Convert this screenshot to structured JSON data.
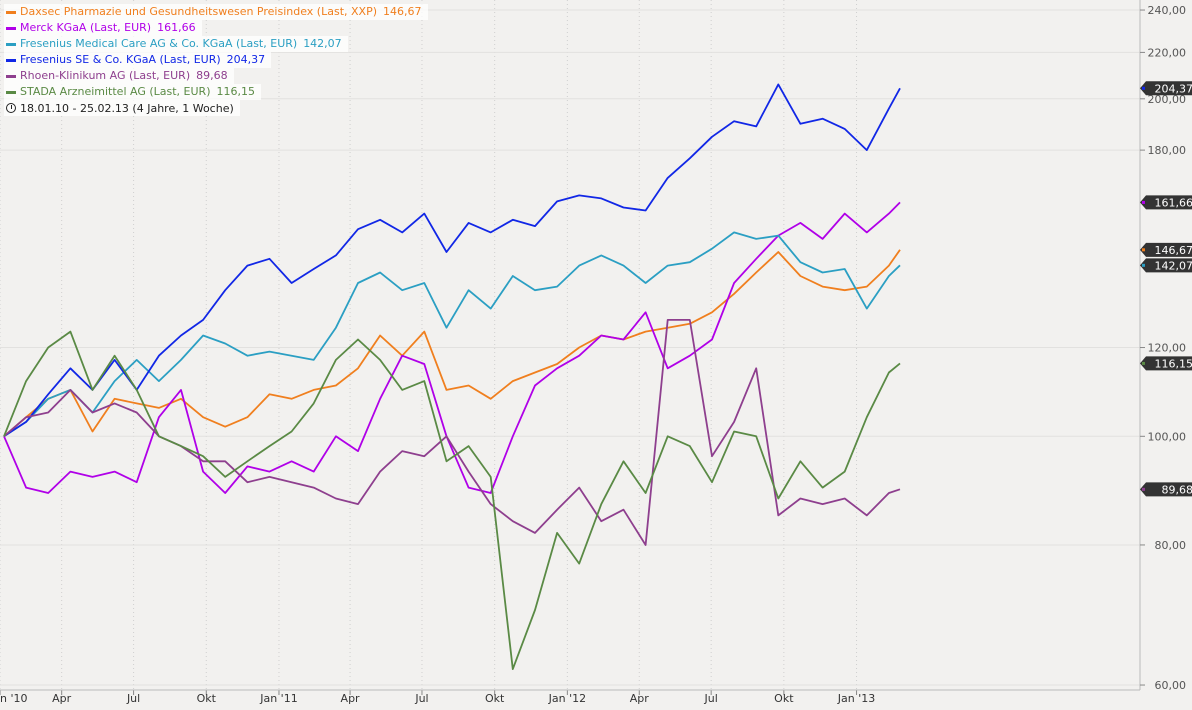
{
  "chart_data": {
    "type": "line",
    "period_label": "18.01.10 - 25.02.13 (4 Jahre, 1 Woche)",
    "ylim": [
      57,
      245
    ],
    "y_scale": "log",
    "y_ticks": [
      {
        "value": 60,
        "label": "60,00"
      },
      {
        "value": 80,
        "label": "80,00"
      },
      {
        "value": 100,
        "label": "100,00"
      },
      {
        "value": 120,
        "label": "120,00"
      },
      {
        "value": 180,
        "label": "180,00"
      },
      {
        "value": 200,
        "label": "200,00"
      },
      {
        "value": 220,
        "label": "220,00"
      },
      {
        "value": 240,
        "label": "240,00"
      }
    ],
    "x_start": "2010-01-18",
    "x_end": "2013-02-25",
    "x_ticks": [
      {
        "date": "2010-01-01",
        "label": "n '10"
      },
      {
        "date": "2010-04-01",
        "label": "Apr"
      },
      {
        "date": "2010-07-01",
        "label": "Jul"
      },
      {
        "date": "2010-10-01",
        "label": "Okt"
      },
      {
        "date": "2011-01-01",
        "label": "Jan '11"
      },
      {
        "date": "2011-04-01",
        "label": "Apr"
      },
      {
        "date": "2011-07-01",
        "label": "Jul"
      },
      {
        "date": "2011-10-01",
        "label": "Okt"
      },
      {
        "date": "2012-01-01",
        "label": "Jan '12"
      },
      {
        "date": "2012-04-01",
        "label": "Apr"
      },
      {
        "date": "2012-07-01",
        "label": "Jul"
      },
      {
        "date": "2012-10-01",
        "label": "Okt"
      },
      {
        "date": "2013-01-01",
        "label": "Jan '13"
      }
    ],
    "grid": "vertical-dotted",
    "legend_position": "top-left",
    "series": [
      {
        "name": "Daxsec Pharmazie und Gesundheitswesen Preisindex (Last, XXP)",
        "last_label": "146,67",
        "last": 146.67,
        "color": "#f07f1e",
        "points": [
          [
            "2010-01-18",
            100
          ],
          [
            "2010-02-15",
            104
          ],
          [
            "2010-03-15",
            108
          ],
          [
            "2010-04-12",
            110
          ],
          [
            "2010-05-10",
            101
          ],
          [
            "2010-06-07",
            108
          ],
          [
            "2010-07-05",
            107
          ],
          [
            "2010-08-02",
            106
          ],
          [
            "2010-08-30",
            108
          ],
          [
            "2010-09-27",
            104
          ],
          [
            "2010-10-25",
            102
          ],
          [
            "2010-11-22",
            104
          ],
          [
            "2010-12-20",
            109
          ],
          [
            "2011-01-17",
            108
          ],
          [
            "2011-02-14",
            110
          ],
          [
            "2011-03-14",
            111
          ],
          [
            "2011-04-11",
            115
          ],
          [
            "2011-05-09",
            123
          ],
          [
            "2011-06-06",
            118
          ],
          [
            "2011-07-04",
            124
          ],
          [
            "2011-08-01",
            110
          ],
          [
            "2011-08-29",
            111
          ],
          [
            "2011-09-26",
            108
          ],
          [
            "2011-10-24",
            112
          ],
          [
            "2011-11-21",
            114
          ],
          [
            "2011-12-19",
            116
          ],
          [
            "2012-01-16",
            120
          ],
          [
            "2012-02-13",
            123
          ],
          [
            "2012-03-12",
            122
          ],
          [
            "2012-04-09",
            124
          ],
          [
            "2012-05-07",
            125
          ],
          [
            "2012-06-04",
            126
          ],
          [
            "2012-07-02",
            129
          ],
          [
            "2012-07-30",
            134
          ],
          [
            "2012-08-27",
            140
          ],
          [
            "2012-09-24",
            146
          ],
          [
            "2012-10-22",
            139
          ],
          [
            "2012-11-19",
            136
          ],
          [
            "2012-12-17",
            135
          ],
          [
            "2013-01-14",
            136
          ],
          [
            "2013-02-11",
            142
          ],
          [
            "2013-02-25",
            146.67
          ]
        ]
      },
      {
        "name": "Merck KGaA (Last, EUR)",
        "last_label": "161,66",
        "last": 161.66,
        "color": "#b000e8",
        "points": [
          [
            "2010-01-18",
            100
          ],
          [
            "2010-02-15",
            90
          ],
          [
            "2010-03-15",
            89
          ],
          [
            "2010-04-12",
            93
          ],
          [
            "2010-05-10",
            92
          ],
          [
            "2010-06-07",
            93
          ],
          [
            "2010-07-05",
            91
          ],
          [
            "2010-08-02",
            104
          ],
          [
            "2010-08-30",
            110
          ],
          [
            "2010-09-27",
            93
          ],
          [
            "2010-10-25",
            89
          ],
          [
            "2010-11-22",
            94
          ],
          [
            "2010-12-20",
            93
          ],
          [
            "2011-01-17",
            95
          ],
          [
            "2011-02-14",
            93
          ],
          [
            "2011-03-14",
            100
          ],
          [
            "2011-04-11",
            97
          ],
          [
            "2011-05-09",
            108
          ],
          [
            "2011-06-06",
            118
          ],
          [
            "2011-07-04",
            116
          ],
          [
            "2011-08-01",
            100
          ],
          [
            "2011-08-29",
            90
          ],
          [
            "2011-09-26",
            89
          ],
          [
            "2011-10-24",
            100
          ],
          [
            "2011-11-21",
            111
          ],
          [
            "2011-12-19",
            115
          ],
          [
            "2012-01-16",
            118
          ],
          [
            "2012-02-13",
            123
          ],
          [
            "2012-03-12",
            122
          ],
          [
            "2012-04-09",
            129
          ],
          [
            "2012-05-07",
            115
          ],
          [
            "2012-06-04",
            118
          ],
          [
            "2012-07-02",
            122
          ],
          [
            "2012-07-30",
            137
          ],
          [
            "2012-08-27",
            144
          ],
          [
            "2012-09-24",
            151
          ],
          [
            "2012-10-22",
            155
          ],
          [
            "2012-11-19",
            150
          ],
          [
            "2012-12-17",
            158
          ],
          [
            "2013-01-14",
            152
          ],
          [
            "2013-02-11",
            158
          ],
          [
            "2013-02-25",
            161.66
          ]
        ]
      },
      {
        "name": "Fresenius Medical Care AG & Co. KGaA (Last, EUR)",
        "last_label": "142,07",
        "last": 142.07,
        "color": "#2b9fc3",
        "points": [
          [
            "2010-01-18",
            100
          ],
          [
            "2010-02-15",
            103
          ],
          [
            "2010-03-15",
            108
          ],
          [
            "2010-04-12",
            110
          ],
          [
            "2010-05-10",
            105
          ],
          [
            "2010-06-07",
            112
          ],
          [
            "2010-07-05",
            117
          ],
          [
            "2010-08-02",
            112
          ],
          [
            "2010-08-30",
            117
          ],
          [
            "2010-09-27",
            123
          ],
          [
            "2010-10-25",
            121
          ],
          [
            "2010-11-22",
            118
          ],
          [
            "2010-12-20",
            119
          ],
          [
            "2011-01-17",
            118
          ],
          [
            "2011-02-14",
            117
          ],
          [
            "2011-03-14",
            125
          ],
          [
            "2011-04-11",
            137
          ],
          [
            "2011-05-09",
            140
          ],
          [
            "2011-06-06",
            135
          ],
          [
            "2011-07-04",
            137
          ],
          [
            "2011-08-01",
            125
          ],
          [
            "2011-08-29",
            135
          ],
          [
            "2011-09-26",
            130
          ],
          [
            "2011-10-24",
            139
          ],
          [
            "2011-11-21",
            135
          ],
          [
            "2011-12-19",
            136
          ],
          [
            "2012-01-16",
            142
          ],
          [
            "2012-02-13",
            145
          ],
          [
            "2012-03-12",
            142
          ],
          [
            "2012-04-09",
            137
          ],
          [
            "2012-05-07",
            142
          ],
          [
            "2012-06-04",
            143
          ],
          [
            "2012-07-02",
            147
          ],
          [
            "2012-07-30",
            152
          ],
          [
            "2012-08-27",
            150
          ],
          [
            "2012-09-24",
            151
          ],
          [
            "2012-10-22",
            143
          ],
          [
            "2012-11-19",
            140
          ],
          [
            "2012-12-17",
            141
          ],
          [
            "2013-01-14",
            130
          ],
          [
            "2013-02-11",
            139
          ],
          [
            "2013-02-25",
            142.07
          ]
        ]
      },
      {
        "name": "Fresenius SE & Co. KGaA (Last, EUR)",
        "last_label": "204,37",
        "last": 204.37,
        "color": "#1127e6",
        "points": [
          [
            "2010-01-18",
            100
          ],
          [
            "2010-02-15",
            103
          ],
          [
            "2010-03-15",
            109
          ],
          [
            "2010-04-12",
            115
          ],
          [
            "2010-05-10",
            110
          ],
          [
            "2010-06-07",
            117
          ],
          [
            "2010-07-05",
            110
          ],
          [
            "2010-08-02",
            118
          ],
          [
            "2010-08-30",
            123
          ],
          [
            "2010-09-27",
            127
          ],
          [
            "2010-10-25",
            135
          ],
          [
            "2010-11-22",
            142
          ],
          [
            "2010-12-20",
            144
          ],
          [
            "2011-01-17",
            137
          ],
          [
            "2011-02-14",
            141
          ],
          [
            "2011-03-14",
            145
          ],
          [
            "2011-04-11",
            153
          ],
          [
            "2011-05-09",
            156
          ],
          [
            "2011-06-06",
            152
          ],
          [
            "2011-07-04",
            158
          ],
          [
            "2011-08-01",
            146
          ],
          [
            "2011-08-29",
            155
          ],
          [
            "2011-09-26",
            152
          ],
          [
            "2011-10-24",
            156
          ],
          [
            "2011-11-21",
            154
          ],
          [
            "2011-12-19",
            162
          ],
          [
            "2012-01-16",
            164
          ],
          [
            "2012-02-13",
            163
          ],
          [
            "2012-03-12",
            160
          ],
          [
            "2012-04-09",
            159
          ],
          [
            "2012-05-07",
            170
          ],
          [
            "2012-06-04",
            177
          ],
          [
            "2012-07-02",
            185
          ],
          [
            "2012-07-30",
            191
          ],
          [
            "2012-08-27",
            189
          ],
          [
            "2012-09-24",
            206
          ],
          [
            "2012-10-22",
            190
          ],
          [
            "2012-11-19",
            192
          ],
          [
            "2012-12-17",
            188
          ],
          [
            "2013-01-14",
            180
          ],
          [
            "2013-02-11",
            196
          ],
          [
            "2013-02-25",
            204.37
          ]
        ]
      },
      {
        "name": "Rhoen-Klinikum AG (Last, EUR)",
        "last_label": "89,68",
        "last": 89.68,
        "color": "#8e3f8e",
        "points": [
          [
            "2010-01-18",
            100
          ],
          [
            "2010-02-15",
            104
          ],
          [
            "2010-03-15",
            105
          ],
          [
            "2010-04-12",
            110
          ],
          [
            "2010-05-10",
            105
          ],
          [
            "2010-06-07",
            107
          ],
          [
            "2010-07-05",
            105
          ],
          [
            "2010-08-02",
            100
          ],
          [
            "2010-08-30",
            98
          ],
          [
            "2010-09-27",
            95
          ],
          [
            "2010-10-25",
            95
          ],
          [
            "2010-11-22",
            91
          ],
          [
            "2010-12-20",
            92
          ],
          [
            "2011-01-17",
            91
          ],
          [
            "2011-02-14",
            90
          ],
          [
            "2011-03-14",
            88
          ],
          [
            "2011-04-11",
            87
          ],
          [
            "2011-05-09",
            93
          ],
          [
            "2011-06-06",
            97
          ],
          [
            "2011-07-04",
            96
          ],
          [
            "2011-08-01",
            100
          ],
          [
            "2011-08-29",
            93
          ],
          [
            "2011-09-26",
            87
          ],
          [
            "2011-10-24",
            84
          ],
          [
            "2011-11-21",
            82
          ],
          [
            "2011-12-19",
            86
          ],
          [
            "2012-01-16",
            90
          ],
          [
            "2012-02-13",
            84
          ],
          [
            "2012-03-12",
            86
          ],
          [
            "2012-04-09",
            80
          ],
          [
            "2012-05-07",
            127
          ],
          [
            "2012-06-04",
            127
          ],
          [
            "2012-07-02",
            96
          ],
          [
            "2012-07-30",
            103
          ],
          [
            "2012-08-27",
            115
          ],
          [
            "2012-09-24",
            85
          ],
          [
            "2012-10-22",
            88
          ],
          [
            "2012-11-19",
            87
          ],
          [
            "2012-12-17",
            88
          ],
          [
            "2013-01-14",
            85
          ],
          [
            "2013-02-11",
            89
          ],
          [
            "2013-02-25",
            89.68
          ]
        ]
      },
      {
        "name": "STADA Arzneimittel AG (Last, EUR)",
        "last_label": "116,15",
        "last": 116.15,
        "color": "#5a8a45",
        "points": [
          [
            "2010-01-18",
            100
          ],
          [
            "2010-02-15",
            112
          ],
          [
            "2010-03-15",
            120
          ],
          [
            "2010-04-12",
            124
          ],
          [
            "2010-05-10",
            110
          ],
          [
            "2010-06-07",
            118
          ],
          [
            "2010-07-05",
            110
          ],
          [
            "2010-08-02",
            100
          ],
          [
            "2010-08-30",
            98
          ],
          [
            "2010-09-27",
            96
          ],
          [
            "2010-10-25",
            92
          ],
          [
            "2010-11-22",
            95
          ],
          [
            "2010-12-20",
            98
          ],
          [
            "2011-01-17",
            101
          ],
          [
            "2011-02-14",
            107
          ],
          [
            "2011-03-14",
            117
          ],
          [
            "2011-04-11",
            122
          ],
          [
            "2011-05-09",
            117
          ],
          [
            "2011-06-06",
            110
          ],
          [
            "2011-07-04",
            112
          ],
          [
            "2011-08-01",
            95
          ],
          [
            "2011-08-29",
            98
          ],
          [
            "2011-09-26",
            92
          ],
          [
            "2011-10-24",
            62
          ],
          [
            "2011-11-21",
            70
          ],
          [
            "2011-12-19",
            82
          ],
          [
            "2012-01-16",
            77
          ],
          [
            "2012-02-13",
            87
          ],
          [
            "2012-03-12",
            95
          ],
          [
            "2012-04-09",
            89
          ],
          [
            "2012-05-07",
            100
          ],
          [
            "2012-06-04",
            98
          ],
          [
            "2012-07-02",
            91
          ],
          [
            "2012-07-30",
            101
          ],
          [
            "2012-08-27",
            100
          ],
          [
            "2012-09-24",
            88
          ],
          [
            "2012-10-22",
            95
          ],
          [
            "2012-11-19",
            90
          ],
          [
            "2012-12-17",
            93
          ],
          [
            "2013-01-14",
            104
          ],
          [
            "2013-02-11",
            114
          ],
          [
            "2013-02-25",
            116.15
          ]
        ]
      }
    ]
  }
}
